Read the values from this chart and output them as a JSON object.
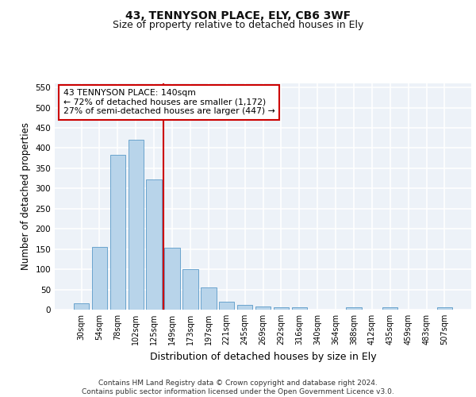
{
  "title_line1": "43, TENNYSON PLACE, ELY, CB6 3WF",
  "title_line2": "Size of property relative to detached houses in Ely",
  "xlabel": "Distribution of detached houses by size in Ely",
  "ylabel": "Number of detached properties",
  "categories": [
    "30sqm",
    "54sqm",
    "78sqm",
    "102sqm",
    "125sqm",
    "149sqm",
    "173sqm",
    "197sqm",
    "221sqm",
    "245sqm",
    "269sqm",
    "292sqm",
    "316sqm",
    "340sqm",
    "364sqm",
    "388sqm",
    "412sqm",
    "435sqm",
    "459sqm",
    "483sqm",
    "507sqm"
  ],
  "values": [
    15,
    155,
    383,
    420,
    323,
    153,
    100,
    55,
    20,
    12,
    7,
    5,
    5,
    0,
    0,
    5,
    0,
    5,
    0,
    0,
    5
  ],
  "bar_color": "#b8d4ea",
  "bar_edge_color": "#5a9ac8",
  "vline_color": "#cc0000",
  "annotation_text": "43 TENNYSON PLACE: 140sqm\n← 72% of detached houses are smaller (1,172)\n27% of semi-detached houses are larger (447) →",
  "annotation_box_color": "#cc0000",
  "ylim": [
    0,
    560
  ],
  "yticks": [
    0,
    50,
    100,
    150,
    200,
    250,
    300,
    350,
    400,
    450,
    500,
    550
  ],
  "background_color": "#edf2f8",
  "grid_color": "#ffffff",
  "footer_text": "Contains HM Land Registry data © Crown copyright and database right 2024.\nContains public sector information licensed under the Open Government Licence v3.0.",
  "title_fontsize": 10,
  "subtitle_fontsize": 9,
  "axis_label_fontsize": 8.5,
  "tick_fontsize": 7,
  "footer_fontsize": 6.5
}
